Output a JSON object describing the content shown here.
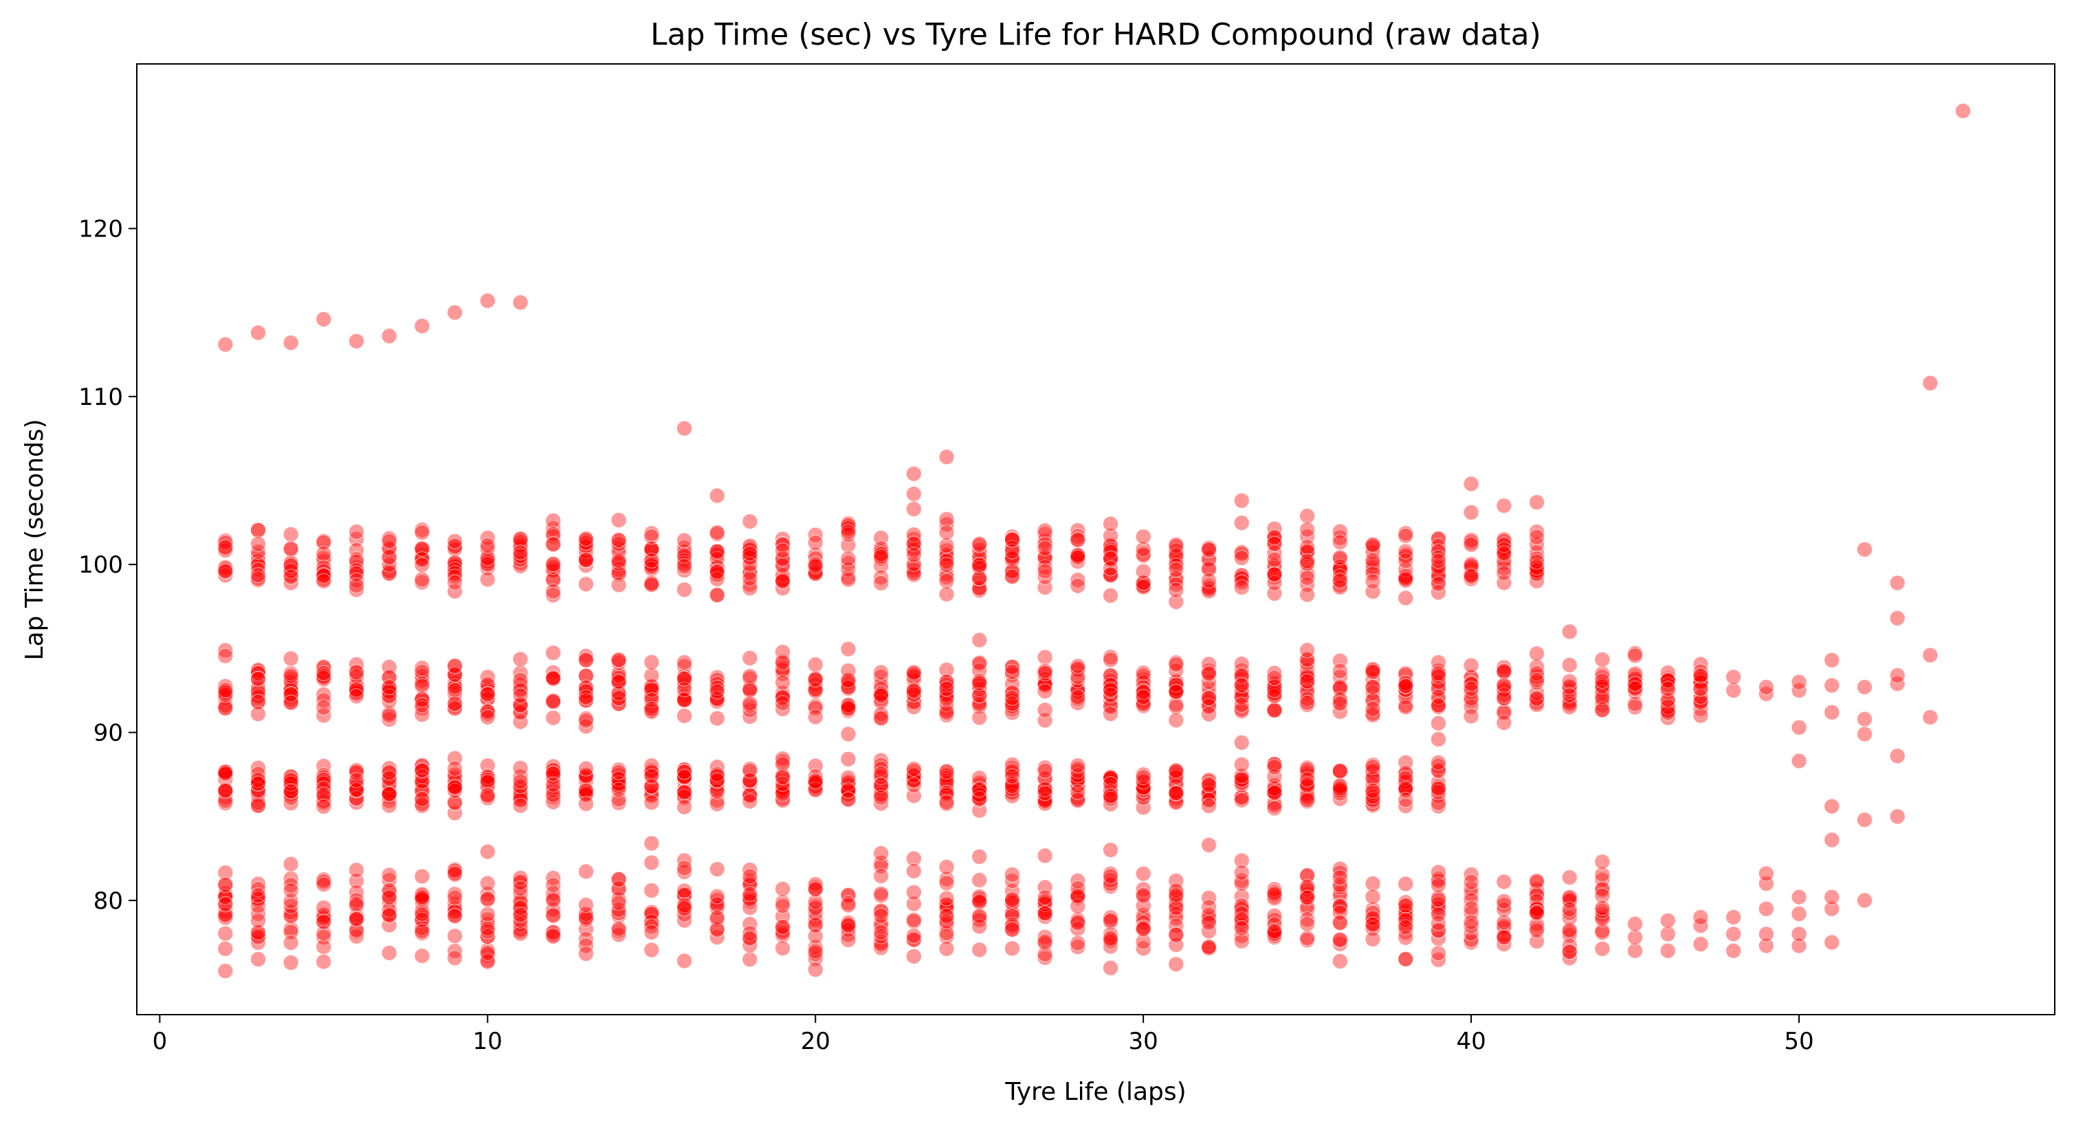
{
  "chart_data": {
    "type": "scatter",
    "title": "Lap Time (sec) vs Tyre Life for HARD Compound (raw data)",
    "xlabel": "Tyre Life (laps)",
    "ylabel": "Lap Time (seconds)",
    "xlim": [
      -0.7,
      57.8
    ],
    "ylim": [
      73.2,
      129.8
    ],
    "xticks": [
      0,
      10,
      20,
      30,
      40,
      50
    ],
    "yticks": [
      80,
      90,
      100,
      110,
      120
    ],
    "grid": false,
    "legend": "none",
    "marker_color": "#ff0000",
    "marker_alpha": 0.4,
    "bands": [
      {
        "center": 79.3,
        "spread": 1.6,
        "start": 2,
        "end": 44
      },
      {
        "center": 86.8,
        "spread": 0.8,
        "start": 2,
        "end": 39
      },
      {
        "center": 92.6,
        "spread": 1.1,
        "start": 2,
        "end": 47
      },
      {
        "center": 100.3,
        "spread": 1.2,
        "start": 2,
        "end": 42
      }
    ],
    "band_tail_points": [
      [
        45,
        77.0
      ],
      [
        45,
        77.8
      ],
      [
        45,
        78.6
      ],
      [
        45,
        92.6
      ],
      [
        45,
        92.9
      ],
      [
        46,
        77.0
      ],
      [
        46,
        78.0
      ],
      [
        46,
        78.8
      ],
      [
        46,
        92.6
      ],
      [
        47,
        77.4
      ],
      [
        47,
        78.5
      ],
      [
        47,
        79.0
      ],
      [
        47,
        92.6
      ],
      [
        47,
        93.4
      ],
      [
        48,
        77.0
      ],
      [
        48,
        78.0
      ],
      [
        48,
        79.0
      ],
      [
        48,
        92.5
      ],
      [
        48,
        93.3
      ],
      [
        49,
        77.3
      ],
      [
        49,
        78.0
      ],
      [
        49,
        79.5
      ],
      [
        49,
        81.0
      ],
      [
        49,
        81.6
      ],
      [
        49,
        92.3
      ],
      [
        49,
        92.7
      ],
      [
        50,
        77.3
      ],
      [
        50,
        78.0
      ],
      [
        50,
        79.2
      ],
      [
        50,
        80.2
      ],
      [
        50,
        88.3
      ],
      [
        50,
        90.3
      ],
      [
        50,
        92.5
      ],
      [
        50,
        93.0
      ],
      [
        51,
        77.5
      ],
      [
        51,
        79.5
      ],
      [
        51,
        80.2
      ],
      [
        51,
        83.6
      ],
      [
        51,
        85.6
      ],
      [
        51,
        91.2
      ],
      [
        51,
        92.8
      ],
      [
        51,
        94.3
      ],
      [
        52,
        80.0
      ],
      [
        52,
        84.8
      ],
      [
        52,
        89.9
      ],
      [
        52,
        90.8
      ],
      [
        52,
        92.7
      ],
      [
        52,
        100.9
      ],
      [
        53,
        85.0
      ],
      [
        53,
        88.6
      ],
      [
        53,
        92.9
      ],
      [
        53,
        93.4
      ],
      [
        53,
        96.8
      ],
      [
        53,
        98.9
      ],
      [
        54,
        90.9
      ],
      [
        54,
        94.6
      ]
    ],
    "outliers": [
      [
        2,
        113.1
      ],
      [
        3,
        113.8
      ],
      [
        4,
        113.2
      ],
      [
        5,
        114.6
      ],
      [
        6,
        113.3
      ],
      [
        7,
        113.6
      ],
      [
        8,
        114.2
      ],
      [
        9,
        115.0
      ],
      [
        10,
        115.7
      ],
      [
        11,
        115.6
      ],
      [
        16,
        108.1
      ],
      [
        17,
        104.1
      ],
      [
        23,
        105.4
      ],
      [
        23,
        104.2
      ],
      [
        23,
        103.3
      ],
      [
        24,
        106.4
      ],
      [
        24,
        102.7
      ],
      [
        24,
        101.9
      ],
      [
        33,
        103.8
      ],
      [
        40,
        104.8
      ],
      [
        40,
        103.1
      ],
      [
        41,
        103.5
      ],
      [
        42,
        103.7
      ],
      [
        43,
        96.0
      ],
      [
        25,
        95.5
      ],
      [
        35,
        94.9
      ],
      [
        21,
        89.9
      ],
      [
        33,
        89.4
      ],
      [
        39,
        89.6
      ],
      [
        15,
        83.4
      ],
      [
        29,
        83.0
      ],
      [
        22,
        82.8
      ],
      [
        32,
        83.3
      ],
      [
        10,
        82.9
      ],
      [
        25,
        82.6
      ],
      [
        54,
        110.8
      ],
      [
        55,
        127.0
      ],
      [
        2,
        75.8
      ],
      [
        16,
        76.4
      ],
      [
        4,
        76.3
      ]
    ]
  }
}
